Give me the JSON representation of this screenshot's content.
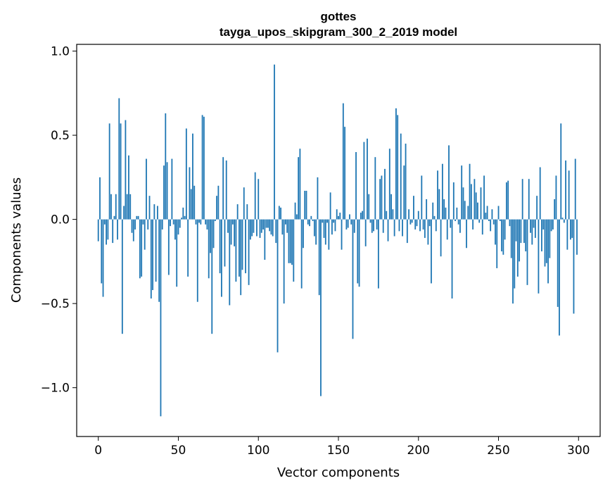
{
  "chart_data": {
    "type": "bar",
    "title": "gottes",
    "subtitle": "tayga_upos_skipgram_300_2_2019 model",
    "xlabel": "Vector components",
    "ylabel": "Components values",
    "xlim": [
      -13.5,
      313.5
    ],
    "ylim": [
      -1.29,
      1.04
    ],
    "xticks": [
      0,
      50,
      100,
      150,
      200,
      250,
      300
    ],
    "xtick_labels": [
      "0",
      "50",
      "100",
      "150",
      "200",
      "250",
      "300"
    ],
    "yticks": [
      -1.0,
      -0.5,
      0.0,
      0.5,
      1.0
    ],
    "ytick_labels": [
      "−1.0",
      "−0.5",
      "0.0",
      "0.5",
      "1.0"
    ],
    "bar_color": "#1f77b4",
    "values": [
      -0.13,
      0.25,
      -0.38,
      -0.46,
      -0.03,
      -0.15,
      -0.12,
      0.57,
      0.15,
      -0.14,
      0.02,
      0.15,
      -0.12,
      0.72,
      0.57,
      -0.68,
      0.08,
      0.59,
      0.15,
      0.38,
      0.15,
      -0.08,
      -0.13,
      -0.06,
      0.02,
      0.02,
      -0.35,
      -0.34,
      -0.03,
      -0.18,
      0.36,
      -0.06,
      0.14,
      -0.47,
      -0.42,
      0.09,
      -0.37,
      0.08,
      -0.49,
      -1.17,
      -0.06,
      0.32,
      0.63,
      0.34,
      -0.33,
      -0.04,
      0.36,
      -0.03,
      -0.12,
      -0.4,
      -0.09,
      -0.05,
      0.01,
      0.07,
      0.02,
      0.54,
      -0.34,
      0.31,
      0.18,
      0.51,
      0.2,
      -0.03,
      -0.49,
      -0.02,
      -0.03,
      0.62,
      0.61,
      -0.03,
      -0.06,
      -0.35,
      -0.2,
      -0.68,
      -0.17,
      -0.01,
      0.14,
      0.2,
      -0.32,
      -0.46,
      0.37,
      -0.28,
      0.35,
      -0.08,
      -0.51,
      -0.15,
      -0.03,
      -0.16,
      -0.37,
      0.09,
      -0.34,
      -0.45,
      -0.3,
      0.19,
      -0.32,
      0.09,
      -0.39,
      -0.12,
      -0.1,
      -0.08,
      0.28,
      -0.1,
      0.24,
      -0.11,
      -0.08,
      -0.06,
      -0.24,
      -0.05,
      -0.05,
      -0.07,
      -0.09,
      -0.1,
      0.92,
      -0.14,
      -0.79,
      0.08,
      0.07,
      -0.09,
      -0.5,
      -0.03,
      -0.08,
      -0.26,
      -0.26,
      -0.27,
      -0.37,
      0.1,
      0.03,
      0.37,
      0.42,
      -0.41,
      -0.17,
      0.17,
      0.17,
      -0.03,
      -0.04,
      0.02,
      -0.01,
      -0.1,
      -0.15,
      0.25,
      -0.45,
      -1.05,
      -0.02,
      -0.11,
      -0.15,
      -0.02,
      -0.18,
      0.16,
      -0.09,
      -0.02,
      -0.07,
      0.06,
      0.02,
      0.04,
      -0.18,
      0.69,
      0.55,
      -0.06,
      -0.05,
      0.03,
      -0.03,
      -0.71,
      -0.08,
      0.4,
      -0.38,
      -0.4,
      0.04,
      0.05,
      0.46,
      -0.16,
      0.48,
      0.15,
      -0.02,
      -0.08,
      -0.07,
      0.37,
      -0.06,
      -0.41,
      0.24,
      0.26,
      -0.08,
      0.3,
      0.05,
      -0.13,
      0.42,
      0.15,
      0.06,
      -0.1,
      0.66,
      0.62,
      -0.07,
      0.51,
      -0.1,
      0.32,
      0.45,
      -0.14,
      0.06,
      -0.03,
      -0.02,
      0.14,
      -0.06,
      -0.04,
      0.05,
      -0.07,
      0.26,
      -0.06,
      -0.11,
      0.12,
      -0.15,
      -0.04,
      -0.38,
      0.1,
      0.02,
      -0.07,
      0.29,
      0.18,
      -0.22,
      0.33,
      0.12,
      0.07,
      -0.12,
      0.44,
      -0.05,
      -0.47,
      0.22,
      -0.01,
      0.07,
      -0.03,
      -0.08,
      0.32,
      0.19,
      0.11,
      -0.17,
      0.08,
      0.33,
      0.21,
      -0.06,
      0.24,
      0.16,
      0.1,
      -0.02,
      0.19,
      -0.09,
      0.26,
      0.04,
      0.08,
      -0.01,
      -0.07,
      0.06,
      -0.03,
      -0.15,
      -0.29,
      0.08,
      -0.01,
      -0.19,
      -0.21,
      -0.12,
      0.22,
      0.23,
      -0.04,
      -0.23,
      -0.5,
      -0.41,
      -0.13,
      -0.34,
      -0.25,
      -0.14,
      0.24,
      -0.14,
      -0.19,
      -0.39,
      0.24,
      -0.08,
      -0.15,
      -0.05,
      -0.11,
      0.14,
      -0.44,
      0.31,
      -0.19,
      -0.06,
      -0.28,
      -0.26,
      -0.38,
      -0.23,
      -0.07,
      -0.06,
      0.12,
      0.26,
      -0.52,
      -0.69,
      0.57,
      0.01,
      -0.02,
      0.35,
      -0.18,
      0.29,
      -0.12,
      -0.11,
      -0.56,
      0.36,
      -0.21
    ]
  }
}
